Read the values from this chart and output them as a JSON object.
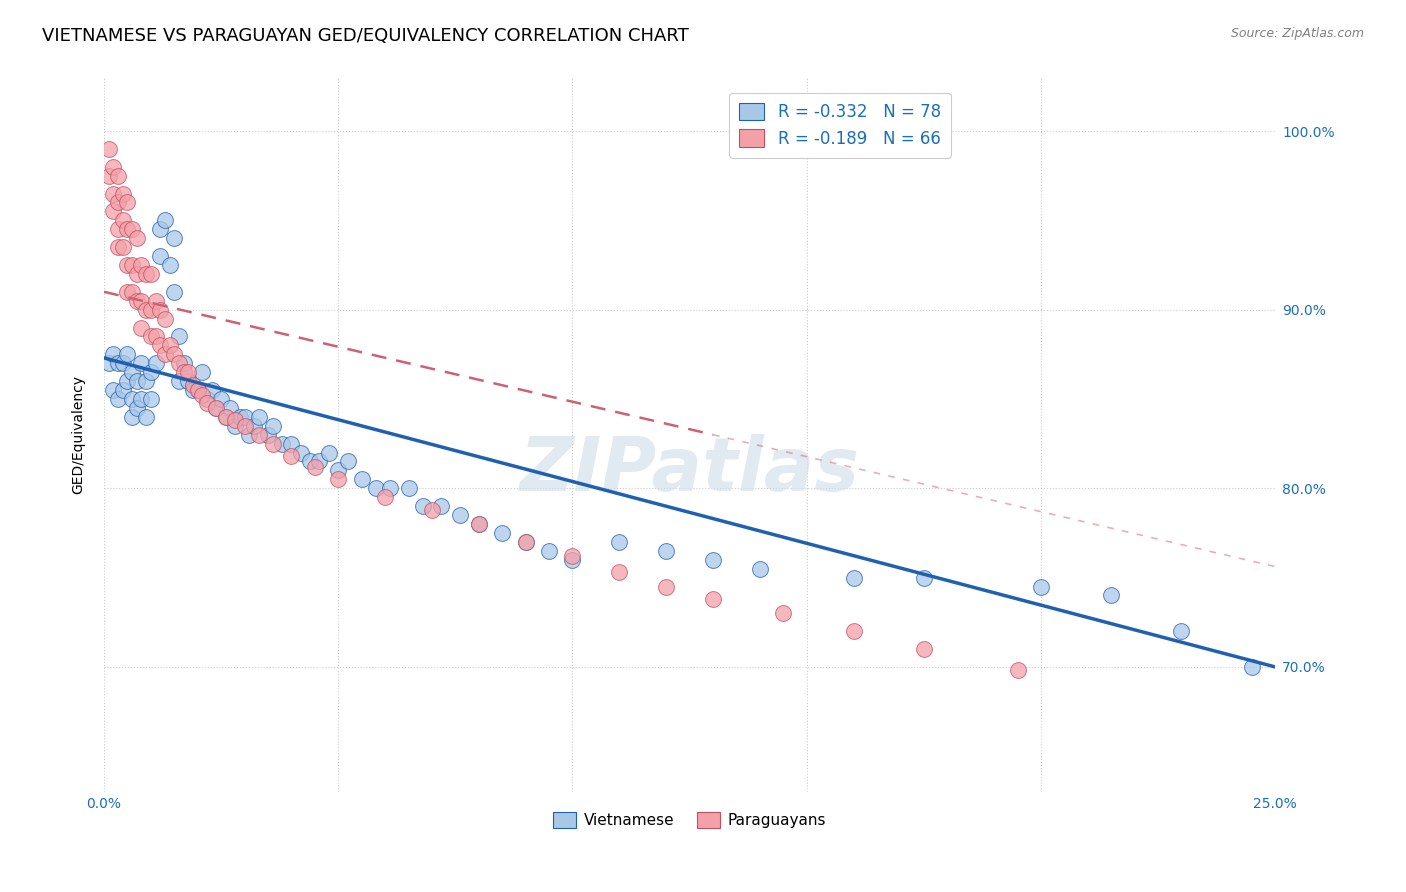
{
  "title": "VIETNAMESE VS PARAGUAYAN GED/EQUIVALENCY CORRELATION CHART",
  "source": "Source: ZipAtlas.com",
  "ylabel": "GED/Equivalency",
  "xlabel": "",
  "xlim": [
    0.0,
    0.25
  ],
  "ylim": [
    0.63,
    1.03
  ],
  "xticks": [
    0.0,
    0.05,
    0.1,
    0.15,
    0.2,
    0.25
  ],
  "xtick_labels": [
    "0.0%",
    "",
    "",
    "",
    "",
    "25.0%"
  ],
  "yticks": [
    0.7,
    0.8,
    0.9,
    1.0
  ],
  "ytick_labels": [
    "70.0%",
    "80.0%",
    "90.0%",
    "100.0%"
  ],
  "legend_text_blue": "R = -0.332   N = 78",
  "legend_text_pink": "R = -0.189   N = 66",
  "blue_color": "#a8c8e8",
  "pink_color": "#f4a0a8",
  "trendline_blue": "#2060b0",
  "trendline_pink": "#d06070",
  "watermark": "ZIPatlas",
  "title_fontsize": 13,
  "axis_fontsize": 10,
  "tick_fontsize": 10,
  "blue_trend_x0": 0.0,
  "blue_trend_y0": 0.873,
  "blue_trend_x1": 0.25,
  "blue_trend_y1": 0.7,
  "pink_trend_x0": 0.0,
  "pink_trend_y0": 0.91,
  "pink_trend_x1": 0.13,
  "pink_trend_y1": 0.83,
  "vietnamese_points_x": [
    0.001,
    0.002,
    0.002,
    0.003,
    0.003,
    0.004,
    0.004,
    0.005,
    0.005,
    0.006,
    0.006,
    0.006,
    0.007,
    0.007,
    0.008,
    0.008,
    0.009,
    0.009,
    0.01,
    0.01,
    0.011,
    0.012,
    0.012,
    0.013,
    0.014,
    0.015,
    0.015,
    0.016,
    0.016,
    0.017,
    0.018,
    0.019,
    0.02,
    0.021,
    0.022,
    0.023,
    0.024,
    0.025,
    0.026,
    0.027,
    0.028,
    0.029,
    0.03,
    0.031,
    0.032,
    0.033,
    0.035,
    0.036,
    0.038,
    0.04,
    0.042,
    0.044,
    0.046,
    0.048,
    0.05,
    0.052,
    0.055,
    0.058,
    0.061,
    0.065,
    0.068,
    0.072,
    0.076,
    0.08,
    0.085,
    0.09,
    0.095,
    0.1,
    0.11,
    0.12,
    0.13,
    0.14,
    0.16,
    0.175,
    0.2,
    0.215,
    0.23,
    0.245
  ],
  "vietnamese_points_y": [
    0.87,
    0.875,
    0.855,
    0.87,
    0.85,
    0.87,
    0.855,
    0.875,
    0.86,
    0.865,
    0.85,
    0.84,
    0.86,
    0.845,
    0.87,
    0.85,
    0.86,
    0.84,
    0.865,
    0.85,
    0.87,
    0.93,
    0.945,
    0.95,
    0.925,
    0.94,
    0.91,
    0.885,
    0.86,
    0.87,
    0.86,
    0.855,
    0.855,
    0.865,
    0.85,
    0.855,
    0.845,
    0.85,
    0.84,
    0.845,
    0.835,
    0.84,
    0.84,
    0.83,
    0.835,
    0.84,
    0.83,
    0.835,
    0.825,
    0.825,
    0.82,
    0.815,
    0.815,
    0.82,
    0.81,
    0.815,
    0.805,
    0.8,
    0.8,
    0.8,
    0.79,
    0.79,
    0.785,
    0.78,
    0.775,
    0.77,
    0.765,
    0.76,
    0.77,
    0.765,
    0.76,
    0.755,
    0.75,
    0.75,
    0.745,
    0.74,
    0.72,
    0.7
  ],
  "paraguayan_points_x": [
    0.001,
    0.001,
    0.002,
    0.002,
    0.002,
    0.003,
    0.003,
    0.003,
    0.003,
    0.004,
    0.004,
    0.004,
    0.005,
    0.005,
    0.005,
    0.005,
    0.006,
    0.006,
    0.006,
    0.007,
    0.007,
    0.007,
    0.008,
    0.008,
    0.008,
    0.009,
    0.009,
    0.01,
    0.01,
    0.01,
    0.011,
    0.011,
    0.012,
    0.012,
    0.013,
    0.013,
    0.014,
    0.015,
    0.016,
    0.017,
    0.018,
    0.019,
    0.02,
    0.021,
    0.022,
    0.024,
    0.026,
    0.028,
    0.03,
    0.033,
    0.036,
    0.04,
    0.045,
    0.05,
    0.06,
    0.07,
    0.08,
    0.09,
    0.1,
    0.11,
    0.12,
    0.13,
    0.145,
    0.16,
    0.175,
    0.195
  ],
  "paraguayan_points_y": [
    0.99,
    0.975,
    0.98,
    0.965,
    0.955,
    0.975,
    0.96,
    0.945,
    0.935,
    0.965,
    0.95,
    0.935,
    0.96,
    0.945,
    0.925,
    0.91,
    0.945,
    0.925,
    0.91,
    0.94,
    0.92,
    0.905,
    0.925,
    0.905,
    0.89,
    0.92,
    0.9,
    0.92,
    0.9,
    0.885,
    0.905,
    0.885,
    0.9,
    0.88,
    0.895,
    0.875,
    0.88,
    0.875,
    0.87,
    0.865,
    0.865,
    0.858,
    0.855,
    0.852,
    0.848,
    0.845,
    0.84,
    0.838,
    0.835,
    0.83,
    0.825,
    0.818,
    0.812,
    0.805,
    0.795,
    0.788,
    0.78,
    0.77,
    0.762,
    0.753,
    0.745,
    0.738,
    0.73,
    0.72,
    0.71,
    0.698
  ]
}
